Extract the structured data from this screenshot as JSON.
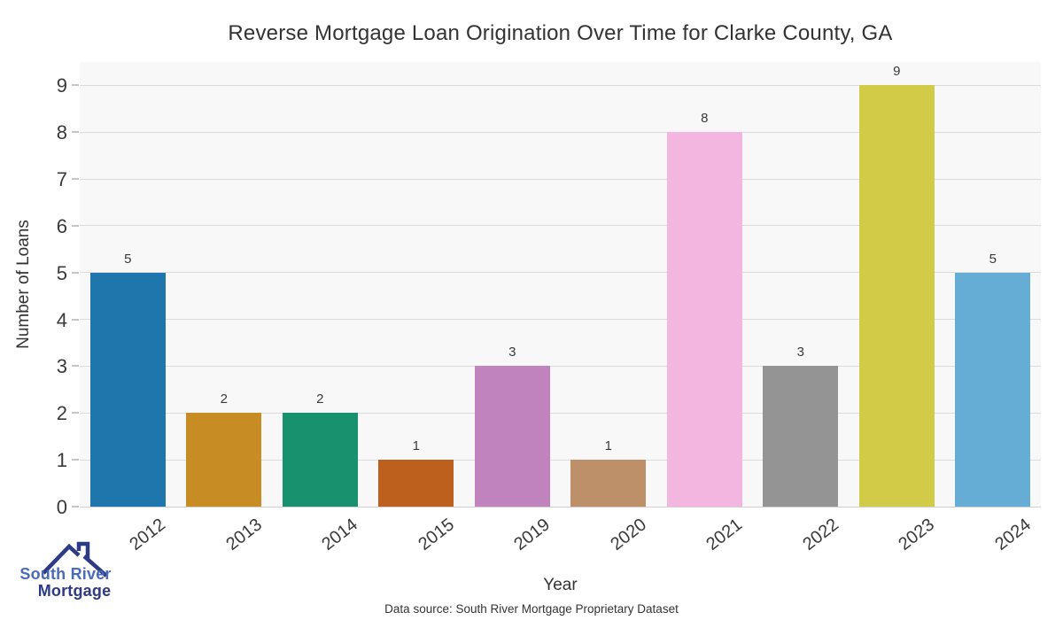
{
  "title": "Reverse Mortgage Loan Origination Over Time for Clarke County, GA",
  "footer": {
    "data_source": "Data source: South River Mortgage Proprietary Dataset"
  },
  "logo": {
    "line1": "South River",
    "line2": "Mortgage",
    "roof_color": "#2d3a84"
  },
  "chart_data": {
    "type": "bar",
    "title": "Reverse Mortgage Loan Origination Over Time for Clarke County, GA",
    "xlabel": "Year",
    "ylabel": "Number of Loans",
    "categories": [
      "2012",
      "2013",
      "2014",
      "2015",
      "2019",
      "2020",
      "2021",
      "2022",
      "2023",
      "2024"
    ],
    "values": [
      5,
      2,
      2,
      1,
      3,
      1,
      8,
      3,
      9,
      5
    ],
    "bar_colors": [
      "#1f76ad",
      "#c78c23",
      "#17916e",
      "#bd5f1d",
      "#c083bd",
      "#bd9069",
      "#f3b6e0",
      "#949494",
      "#d2cb47",
      "#65add5"
    ],
    "ylim": [
      0,
      9.5
    ],
    "yticks": [
      0,
      1,
      2,
      3,
      4,
      5,
      6,
      7,
      8,
      9
    ],
    "grid": "horizontal",
    "grid_color": "#dcdcdc",
    "plot_background": "#f8f8f8",
    "legend_position": "none",
    "value_labels": true
  }
}
